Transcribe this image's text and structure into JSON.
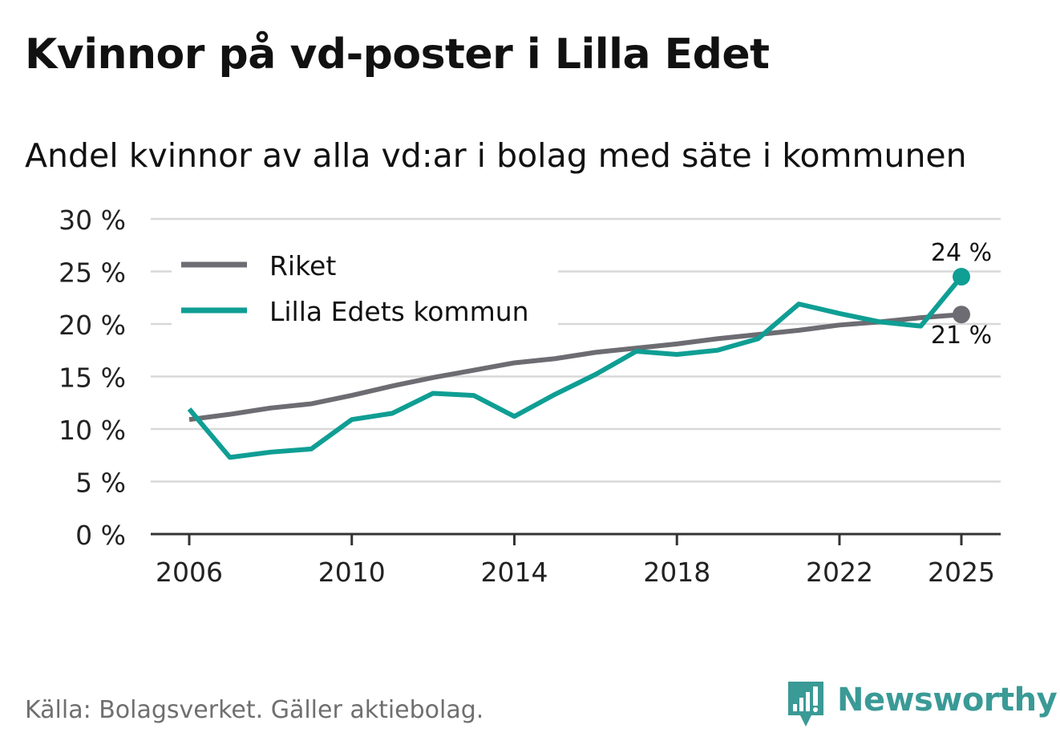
{
  "title": "Kvinnor på vd-poster i Lilla Edet",
  "subtitle": "Andel kvinnor av alla vd:ar i bolag med säte i kommunen",
  "source": "Källa: Bolagsverket. Gäller aktiebolag.",
  "brand": {
    "name": "Newsworthy",
    "icon": "newsworthy-logo-icon",
    "color": "#3a9a96"
  },
  "chart_data": {
    "type": "line",
    "title": "Kvinnor på vd-poster i Lilla Edet",
    "subtitle": "Andel kvinnor av alla vd:ar i bolag med säte i kommunen",
    "xlabel": "",
    "ylabel": "",
    "ylim": [
      0,
      30
    ],
    "xlim": [
      2006,
      2025
    ],
    "yticks": [
      0,
      5,
      10,
      15,
      20,
      25,
      30
    ],
    "ytick_labels": [
      "0 %",
      "5 %",
      "10 %",
      "15 %",
      "20 %",
      "25 %",
      "30 %"
    ],
    "xticks": [
      2006,
      2010,
      2014,
      2018,
      2022,
      2025
    ],
    "xtick_labels": [
      "2006",
      "2010",
      "2014",
      "2018",
      "2022",
      "2025"
    ],
    "grid": true,
    "legend_position": "top-left",
    "x": [
      2006,
      2007,
      2008,
      2009,
      2010,
      2011,
      2012,
      2013,
      2014,
      2015,
      2016,
      2017,
      2018,
      2019,
      2020,
      2021,
      2022,
      2023,
      2024,
      2025
    ],
    "series": [
      {
        "name": "Riket",
        "color": "#6d6c72",
        "values": [
          10.9,
          11.4,
          12.0,
          12.4,
          13.2,
          14.1,
          14.9,
          15.6,
          16.3,
          16.7,
          17.3,
          17.7,
          18.1,
          18.6,
          19.0,
          19.4,
          19.9,
          20.2,
          20.6,
          20.9
        ],
        "end_label": "21 %"
      },
      {
        "name": "Lilla Edets kommun",
        "color": "#0f9e94",
        "values": [
          11.9,
          7.3,
          7.8,
          8.1,
          10.9,
          11.5,
          13.4,
          13.2,
          11.2,
          13.3,
          15.2,
          17.4,
          17.1,
          17.5,
          18.6,
          21.9,
          21.0,
          20.2,
          19.8,
          24.5
        ],
        "end_label": "24 %"
      }
    ]
  }
}
